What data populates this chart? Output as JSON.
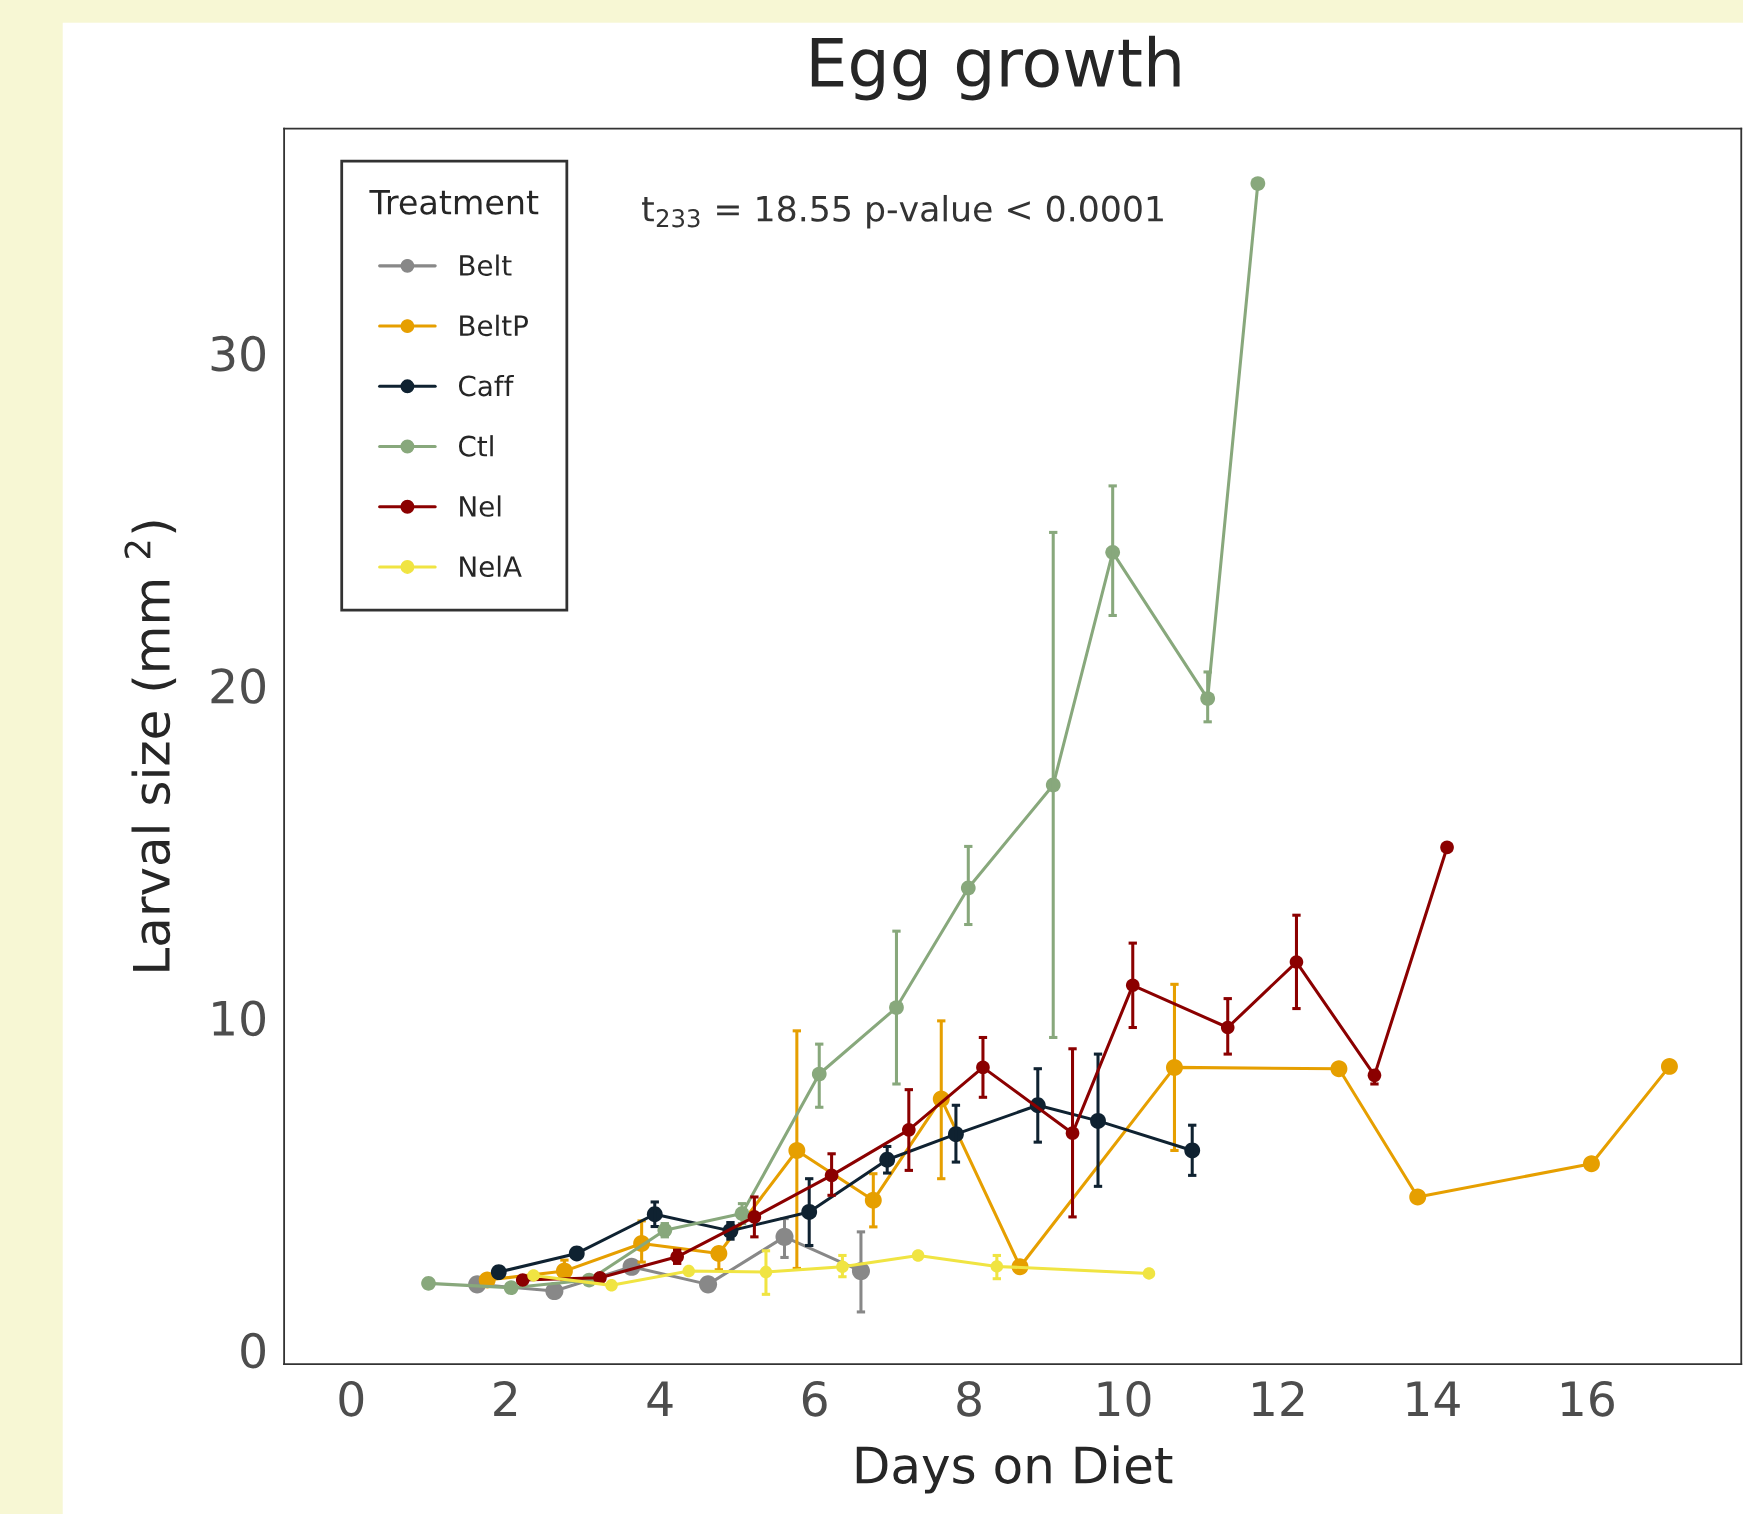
{
  "chart_data": {
    "type": "line",
    "title": "Egg growth",
    "xlabel": "Days on Diet",
    "ylabel": "Larval size (mm $^{2}$)",
    "legend_title": "Treatment",
    "annotations": [
      "t$_{233}$ = 18.55 p-value < 0.0001"
    ],
    "xlim": [
      -0.87,
      18.0
    ],
    "ylim": [
      -0.43,
      36.75
    ],
    "xticks": [
      0,
      2,
      4,
      6,
      8,
      10,
      12,
      14,
      16
    ],
    "yticks": [
      0,
      10,
      20,
      30
    ],
    "grid": false,
    "legend": "top left",
    "marker": "circle",
    "line_style": "solid",
    "series": [
      {
        "name": "Belt",
        "color": "#888888",
        "x": [
          1.63,
          2.63,
          3.63,
          4.62,
          5.61,
          6.6
        ],
        "values": [
          1.97,
          1.77,
          2.5,
          1.97,
          3.4,
          2.37
        ],
        "errors": [
          null,
          null,
          null,
          null,
          [
            2.78,
            3.95
          ],
          [
            1.14,
            3.55
          ]
        ]
      },
      {
        "name": "BeltP",
        "color": "#e69f00",
        "x": [
          1.76,
          2.76,
          3.76,
          4.76,
          5.77,
          6.76,
          7.64,
          8.66,
          10.66,
          12.79,
          13.81,
          16.06,
          17.07
        ],
        "values": [
          2.1,
          2.37,
          3.2,
          2.9,
          6.0,
          4.5,
          7.55,
          2.5,
          8.5,
          8.46,
          4.6,
          5.6,
          8.53
        ],
        "errors": [
          null,
          [
            2.1,
            2.7
          ],
          [
            2.64,
            3.88
          ],
          [
            2.41,
            3.08
          ],
          [
            2.45,
            9.6
          ],
          [
            3.7,
            5.3
          ],
          [
            5.15,
            9.9
          ],
          null,
          [
            6.0,
            11.0
          ],
          null,
          null,
          null,
          null
        ]
      },
      {
        "name": "Caff",
        "color": "#0f2231",
        "x": [
          1.91,
          2.92,
          3.93,
          4.91,
          5.93,
          6.94,
          7.83,
          8.89,
          9.67,
          10.89
        ],
        "values": [
          2.34,
          2.9,
          4.08,
          3.58,
          4.15,
          5.72,
          6.49,
          7.36,
          6.89,
          6.0
        ],
        "errors": [
          null,
          null,
          [
            3.71,
            4.45
          ],
          [
            3.33,
            3.83
          ],
          [
            3.14,
            5.15
          ],
          [
            5.32,
            6.12
          ],
          [
            5.65,
            7.36
          ],
          [
            6.25,
            8.46
          ],
          [
            4.92,
            8.9
          ],
          [
            5.25,
            6.76
          ]
        ]
      },
      {
        "name": "Ctl",
        "color": "#88a87c",
        "x": [
          1.0,
          2.07,
          3.08,
          4.06,
          5.06,
          6.06,
          7.06,
          7.99,
          9.09,
          9.86,
          11.09,
          11.74
        ],
        "values": [
          2.0,
          1.87,
          2.1,
          3.6,
          4.1,
          8.3,
          10.3,
          13.9,
          17.0,
          24.0,
          19.6,
          35.1
        ],
        "errors": [
          null,
          null,
          null,
          [
            3.4,
            3.8
          ],
          [
            3.8,
            4.4
          ],
          [
            7.3,
            9.2
          ],
          [
            8.0,
            12.6
          ],
          [
            12.8,
            15.15
          ],
          [
            9.4,
            24.6
          ],
          [
            22.1,
            26.0
          ],
          [
            18.9,
            20.4
          ],
          null
        ]
      },
      {
        "name": "Nel",
        "color": "#8b0000",
        "x": [
          2.22,
          3.22,
          4.22,
          5.22,
          6.22,
          7.22,
          8.18,
          9.34,
          10.12,
          11.35,
          12.24,
          13.25,
          14.19
        ],
        "values": [
          2.1,
          2.17,
          2.8,
          4.0,
          5.25,
          6.62,
          8.5,
          6.52,
          10.97,
          9.7,
          11.67,
          8.26,
          15.12
        ],
        "errors": [
          null,
          null,
          [
            2.6,
            3.0
          ],
          [
            3.4,
            4.6
          ],
          [
            4.65,
            5.9
          ],
          [
            5.4,
            7.83
          ],
          [
            7.6,
            9.4
          ],
          [
            4.0,
            9.06
          ],
          [
            9.7,
            12.24
          ],
          [
            8.9,
            10.57
          ],
          [
            10.27,
            13.08
          ],
          [
            8.0,
            8.4
          ],
          null
        ]
      },
      {
        "name": "NelA",
        "color": "#f0e442",
        "x": [
          2.36,
          3.37,
          4.37,
          5.37,
          6.36,
          7.34,
          8.36,
          10.33
        ],
        "values": [
          2.24,
          1.94,
          2.37,
          2.34,
          2.5,
          2.84,
          2.51,
          2.3
        ],
        "errors": [
          null,
          null,
          null,
          [
            1.67,
            2.98
          ],
          [
            2.2,
            2.84
          ],
          null,
          [
            2.14,
            2.84
          ],
          null
        ]
      }
    ]
  }
}
